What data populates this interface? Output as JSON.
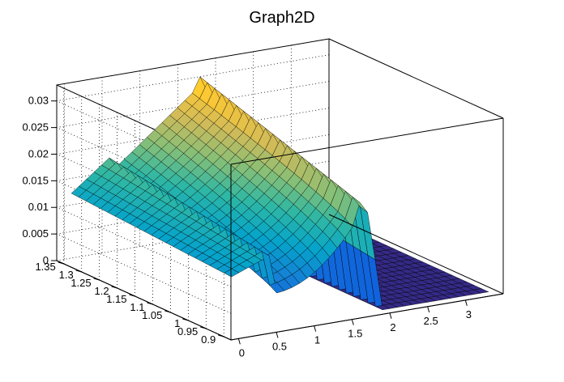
{
  "chart_data": {
    "type": "surface",
    "title": "Graph2D",
    "x_ticks": [
      0,
      0.5,
      1,
      1.5,
      2,
      2.5,
      3
    ],
    "y_ticks": [
      0.9,
      0.95,
      1,
      1.05,
      1.1,
      1.15,
      1.2,
      1.25,
      1.3,
      1.35
    ],
    "z_ticks": [
      0,
      0.005,
      0.01,
      0.015,
      0.02,
      0.025,
      0.03
    ],
    "x_tick_labels": [
      "0",
      "0.5",
      "1",
      "1.5",
      "2",
      "2.5",
      "3"
    ],
    "y_tick_labels": [
      "0.9",
      "0.95",
      "1",
      "1.05",
      "1.1",
      "1.15",
      "1.2",
      "1.25",
      "1.3",
      "1.35"
    ],
    "z_tick_labels": [
      "0",
      "0.005",
      "0.01",
      "0.015",
      "0.02",
      "0.025",
      "0.03"
    ],
    "xlim": [
      -0.1,
      3.5
    ],
    "ylim": [
      0.88,
      1.37
    ],
    "zlim": [
      0,
      0.033
    ],
    "grid": true,
    "palette": "kBird",
    "colors": [
      "#352a87",
      "#0f5cdd",
      "#1481d6",
      "#06a4ca",
      "#2eb7a4",
      "#87bf77",
      "#d1bb59",
      "#fec832",
      "#f9fb0e"
    ],
    "surface": {
      "x_range": [
        0.0,
        3.4
      ],
      "y_range": [
        0.9,
        1.35
      ],
      "x_samples": 34,
      "y_samples": 22,
      "grid_step_x": 0.1,
      "grid_step_y": 0.0225,
      "regions": [
        {
          "x": [
            0.0,
            0.55
          ],
          "z_at_y_0.9": 0.011,
          "z_at_y_1.35": 0.013
        },
        {
          "x": [
            0.55,
            1.6
          ],
          "z_at_y_0.9": 0.0065,
          "z_at_y_1.35": 0.028
        },
        {
          "x": [
            1.6,
            1.9
          ],
          "z_at_y_0.9": 0.021,
          "z_at_y_1.35": 0.031
        },
        {
          "x": [
            1.95,
            3.4
          ],
          "z_at_y_0.9": 0.0,
          "z_at_y_1.35": 0.0
        }
      ]
    }
  }
}
